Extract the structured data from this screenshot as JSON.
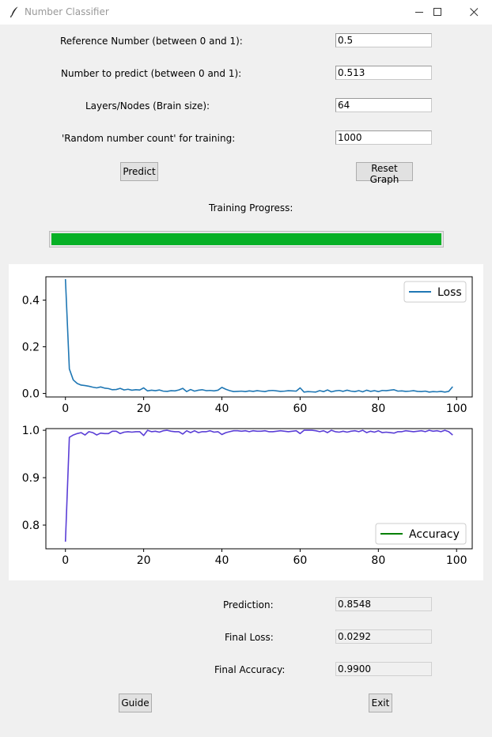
{
  "window": {
    "title": "Number Classifier"
  },
  "form": {
    "reference_label": "Reference Number (between 0 and 1):",
    "reference_value": "0.5",
    "predict_label": "Number to predict (between 0 and 1):",
    "predict_value": "0.513",
    "layers_label": "Layers/Nodes (Brain size):",
    "layers_value": "64",
    "count_label": "'Random number count' for training:",
    "count_value": "1000"
  },
  "buttons": {
    "predict": "Predict",
    "reset": "Reset Graph",
    "guide": "Guide",
    "exit": "Exit"
  },
  "progress": {
    "label": "Training Progress:",
    "value": 1.0,
    "color": "#06b025"
  },
  "results": {
    "prediction_label": "Prediction:",
    "prediction_value": "0.8548",
    "loss_label": "Final Loss:",
    "loss_value": "0.0292",
    "accuracy_label": "Final Accuracy:",
    "accuracy_value": "0.9900"
  },
  "chart_data": [
    {
      "type": "line",
      "legend": "top-right",
      "xlim": [
        -5,
        104
      ],
      "ylim": [
        -0.015,
        0.5
      ],
      "xticks": [
        "0",
        "20",
        "40",
        "60",
        "80",
        "100"
      ],
      "xtick_values": [
        0,
        20,
        40,
        60,
        80,
        100
      ],
      "yticks": [
        "0.0",
        "0.2",
        "0.4"
      ],
      "ytick_values": [
        0.0,
        0.2,
        0.4
      ],
      "series": [
        {
          "name": "Loss",
          "color": "#1f77b4",
          "values": [
            0.49,
            0.105,
            0.058,
            0.043,
            0.036,
            0.034,
            0.031,
            0.027,
            0.024,
            0.028,
            0.023,
            0.021,
            0.016,
            0.017,
            0.022,
            0.015,
            0.018,
            0.014,
            0.016,
            0.015,
            0.024,
            0.011,
            0.014,
            0.012,
            0.015,
            0.01,
            0.009,
            0.012,
            0.011,
            0.015,
            0.022,
            0.008,
            0.017,
            0.01,
            0.014,
            0.016,
            0.012,
            0.013,
            0.011,
            0.014,
            0.026,
            0.018,
            0.012,
            0.008,
            0.009,
            0.01,
            0.008,
            0.011,
            0.009,
            0.012,
            0.01,
            0.008,
            0.012,
            0.013,
            0.011,
            0.009,
            0.01,
            0.012,
            0.011,
            0.01,
            0.024,
            0.006,
            0.008,
            0.007,
            0.006,
            0.012,
            0.008,
            0.015,
            0.007,
            0.011,
            0.013,
            0.009,
            0.014,
            0.01,
            0.008,
            0.012,
            0.007,
            0.014,
            0.009,
            0.012,
            0.008,
            0.013,
            0.012,
            0.014,
            0.016,
            0.01,
            0.011,
            0.009,
            0.01,
            0.012,
            0.009,
            0.008,
            0.01,
            0.006,
            0.008,
            0.007,
            0.009,
            0.006,
            0.009,
            0.0292
          ]
        }
      ]
    },
    {
      "type": "line",
      "legend": "bottom-right",
      "xlim": [
        -5,
        104
      ],
      "ylim": [
        0.75,
        1.0035
      ],
      "xticks": [
        "0",
        "20",
        "40",
        "60",
        "80",
        "100"
      ],
      "xtick_values": [
        0,
        20,
        40,
        60,
        80,
        100
      ],
      "yticks": [
        "0.8",
        "0.9",
        "1.0"
      ],
      "ytick_values": [
        0.8,
        0.9,
        1.0
      ],
      "series": [
        {
          "name": "Accuracy",
          "line_color": "#5a3ed6",
          "legend_color": "#008000",
          "values": [
            0.765,
            0.985,
            0.99,
            0.993,
            0.995,
            0.99,
            0.997,
            0.995,
            0.99,
            0.994,
            0.993,
            0.993,
            0.998,
            0.998,
            0.993,
            0.996,
            0.997,
            0.996,
            0.997,
            0.997,
            0.989,
            1.0,
            0.997,
            0.998,
            0.996,
            0.999,
            1.0,
            0.998,
            0.997,
            0.997,
            0.992,
            0.999,
            0.995,
            0.999,
            0.995,
            0.997,
            0.997,
            0.999,
            0.996,
            0.997,
            0.991,
            0.995,
            0.997,
            0.999,
            0.999,
            0.998,
            0.999,
            0.997,
            0.999,
            0.998,
            0.998,
            0.999,
            0.997,
            0.997,
            0.998,
            0.999,
            0.998,
            0.997,
            0.998,
            0.999,
            0.993,
            1.0,
            1.0,
            1.0,
            0.999,
            0.997,
            0.999,
            0.995,
            1.0,
            0.997,
            0.996,
            0.998,
            0.996,
            0.998,
            0.999,
            0.997,
            1.0,
            0.995,
            0.998,
            0.996,
            0.999,
            0.995,
            0.996,
            0.995,
            0.994,
            0.997,
            0.997,
            0.999,
            0.998,
            0.997,
            0.998,
            0.999,
            0.997,
            1.0,
            0.998,
            0.999,
            0.997,
            1.0,
            0.997,
            0.99
          ]
        }
      ]
    }
  ]
}
